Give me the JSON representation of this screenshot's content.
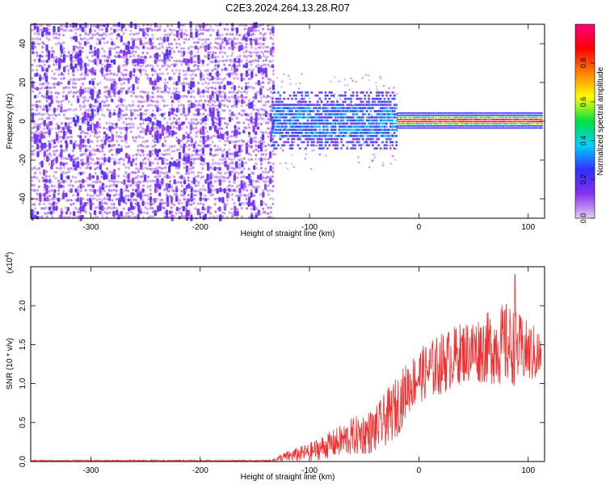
{
  "title": "C2E3.2024.264.13.28.R07",
  "chart_data": [
    {
      "type": "heatmap",
      "xlabel": "Height of straight line (km)",
      "ylabel": "Frequency (Hz)",
      "xlim": [
        -355,
        115
      ],
      "ylim": [
        -50,
        50
      ],
      "x_ticks": [
        -300,
        -200,
        -100,
        0,
        100
      ],
      "y_ticks": [
        -40,
        -20,
        0,
        20,
        40
      ],
      "colorbar": {
        "label": "Normalized spectral amplitude",
        "range": [
          0,
          1
        ],
        "ticks": [
          "0.0",
          "0.2",
          "0.4",
          "0.6",
          "0.8"
        ],
        "tick_values": [
          0,
          0.2,
          0.4,
          0.6,
          0.8
        ],
        "colors": [
          "#e0d0f4",
          "#8a30f0",
          "#3030ff",
          "#00d0ff",
          "#00e040",
          "#ffff00",
          "#ff8000",
          "#ff0000",
          "#ff0080"
        ]
      },
      "regions": [
        {
          "x_range": [
            -355,
            -135
          ],
          "freq_range": [
            -50,
            50
          ],
          "amplitude": "0.0-0.25",
          "description_color": "#7a2ef0"
        },
        {
          "x_range": [
            -135,
            -20
          ],
          "freq_range": [
            -12,
            14
          ],
          "amplitude": "0.1-0.4"
        },
        {
          "x_range": [
            -20,
            112
          ],
          "freq_range": [
            -4,
            4
          ],
          "amplitude": "0.2-0.95",
          "peak_frequency": 0
        }
      ]
    },
    {
      "type": "line",
      "xlabel": "Height of straight line (km)",
      "ylabel": "SNR (10 * v/v)",
      "multiplier_label": "(x10",
      "multiplier_exp": "4",
      "multiplier_close": ")",
      "xlim": [
        -355,
        115
      ],
      "ylim": [
        0,
        2.5
      ],
      "x_ticks": [
        -300,
        -200,
        -100,
        0,
        100
      ],
      "y_ticks": [
        "0.0",
        "0.5",
        "1.0",
        "1.5",
        "2.0"
      ],
      "y_tick_values": [
        0,
        0.5,
        1.0,
        1.5,
        2.0
      ],
      "series": [
        {
          "color": "#f03030",
          "envelope": [
            {
              "x": -355,
              "mean": 0.01,
              "amp": 0.01
            },
            {
              "x": -135,
              "mean": 0.01,
              "amp": 0.01
            },
            {
              "x": -125,
              "mean": 0.05,
              "amp": 0.06
            },
            {
              "x": -100,
              "mean": 0.12,
              "amp": 0.12
            },
            {
              "x": -80,
              "mean": 0.22,
              "amp": 0.18
            },
            {
              "x": -60,
              "mean": 0.32,
              "amp": 0.25
            },
            {
              "x": -40,
              "mean": 0.4,
              "amp": 0.3
            },
            {
              "x": -30,
              "mean": 0.55,
              "amp": 0.35
            },
            {
              "x": -20,
              "mean": 0.7,
              "amp": 0.4
            },
            {
              "x": -10,
              "mean": 0.95,
              "amp": 0.35
            },
            {
              "x": 0,
              "mean": 1.1,
              "amp": 0.35
            },
            {
              "x": 20,
              "mean": 1.25,
              "amp": 0.4
            },
            {
              "x": 40,
              "mean": 1.4,
              "amp": 0.4
            },
            {
              "x": 60,
              "mean": 1.45,
              "amp": 0.45
            },
            {
              "x": 80,
              "mean": 1.5,
              "amp": 0.55
            },
            {
              "x": 100,
              "mean": 1.4,
              "amp": 0.4
            },
            {
              "x": 112,
              "mean": 1.35,
              "amp": 0.35
            }
          ],
          "peak": {
            "x": 88,
            "y": 2.4
          }
        }
      ]
    }
  ]
}
